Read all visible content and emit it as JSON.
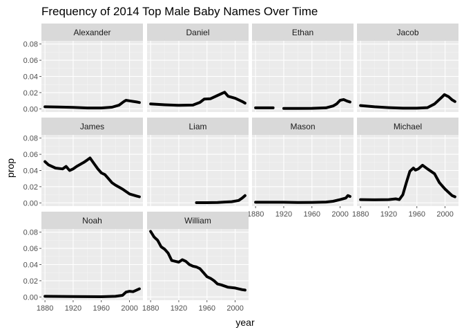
{
  "chart_data": {
    "type": "line",
    "title": "Frequency of 2014 Top Male Baby Names Over Time",
    "xlabel": "year",
    "ylabel": "prop",
    "x_ticks": [
      "1880",
      "1920",
      "1960",
      "2000"
    ],
    "y_ticks": [
      "0.00",
      "0.02",
      "0.04",
      "0.06",
      "0.08"
    ],
    "xlim": [
      1875,
      2019
    ],
    "ylim": [
      -0.004,
      0.084
    ],
    "grid": true,
    "layout": "facet-wrap",
    "colors": {
      "panel_bg": "#ebebeb",
      "strip_bg": "#d9d9d9",
      "grid_major": "#ffffff",
      "grid_minor": "#f5f5f5",
      "series": "#000000"
    },
    "panels": [
      {
        "name": "Alexander",
        "points": [
          [
            1880,
            0.0025
          ],
          [
            1900,
            0.0022
          ],
          [
            1920,
            0.0017
          ],
          [
            1940,
            0.001
          ],
          [
            1960,
            0.001
          ],
          [
            1975,
            0.002
          ],
          [
            1985,
            0.0045
          ],
          [
            1992,
            0.009
          ],
          [
            1995,
            0.0105
          ],
          [
            2000,
            0.0098
          ],
          [
            2005,
            0.0092
          ],
          [
            2010,
            0.0085
          ],
          [
            2014,
            0.0078
          ]
        ]
      },
      {
        "name": "Daniel",
        "points": [
          [
            1880,
            0.006
          ],
          [
            1900,
            0.005
          ],
          [
            1920,
            0.0043
          ],
          [
            1940,
            0.0046
          ],
          [
            1950,
            0.008
          ],
          [
            1956,
            0.012
          ],
          [
            1965,
            0.0125
          ],
          [
            1975,
            0.0165
          ],
          [
            1985,
            0.0205
          ],
          [
            1990,
            0.0155
          ],
          [
            2000,
            0.013
          ],
          [
            2010,
            0.009
          ],
          [
            2014,
            0.007
          ]
        ]
      },
      {
        "name": "Ethan",
        "points": [
          [
            1880,
            0.0012
          ],
          [
            1905,
            0.0012
          ]
        ],
        "points2": [
          [
            1920,
            0.0005
          ],
          [
            1940,
            0.0005
          ],
          [
            1960,
            0.0006
          ],
          [
            1980,
            0.0012
          ],
          [
            1990,
            0.0035
          ],
          [
            1995,
            0.006
          ],
          [
            2000,
            0.0105
          ],
          [
            2005,
            0.0115
          ],
          [
            2010,
            0.0095
          ],
          [
            2014,
            0.0085
          ]
        ]
      },
      {
        "name": "Jacob",
        "points": [
          [
            1880,
            0.004
          ],
          [
            1900,
            0.0025
          ],
          [
            1920,
            0.0015
          ],
          [
            1940,
            0.0008
          ],
          [
            1960,
            0.0008
          ],
          [
            1975,
            0.0015
          ],
          [
            1985,
            0.006
          ],
          [
            1995,
            0.014
          ],
          [
            1999,
            0.0175
          ],
          [
            2005,
            0.015
          ],
          [
            2010,
            0.011
          ],
          [
            2014,
            0.009
          ]
        ]
      },
      {
        "name": "James",
        "points": [
          [
            1880,
            0.051
          ],
          [
            1885,
            0.047
          ],
          [
            1895,
            0.043
          ],
          [
            1905,
            0.042
          ],
          [
            1910,
            0.045
          ],
          [
            1915,
            0.04
          ],
          [
            1920,
            0.042
          ],
          [
            1925,
            0.045
          ],
          [
            1935,
            0.05
          ],
          [
            1940,
            0.053
          ],
          [
            1944,
            0.0555
          ],
          [
            1950,
            0.048
          ],
          [
            1955,
            0.042
          ],
          [
            1960,
            0.037
          ],
          [
            1965,
            0.035
          ],
          [
            1970,
            0.03
          ],
          [
            1975,
            0.025
          ],
          [
            1980,
            0.022
          ],
          [
            1990,
            0.017
          ],
          [
            2000,
            0.011
          ],
          [
            2010,
            0.0085
          ],
          [
            2014,
            0.0075
          ]
        ]
      },
      {
        "name": "Liam",
        "points": [
          [
            1945,
            0.0003
          ],
          [
            1960,
            0.0003
          ],
          [
            1975,
            0.0005
          ],
          [
            1985,
            0.001
          ],
          [
            1995,
            0.0015
          ],
          [
            2005,
            0.003
          ],
          [
            2010,
            0.006
          ],
          [
            2014,
            0.009
          ]
        ]
      },
      {
        "name": "Mason",
        "points": [
          [
            1880,
            0.0008
          ],
          [
            1920,
            0.0008
          ],
          [
            1940,
            0.0005
          ],
          [
            1960,
            0.0006
          ],
          [
            1980,
            0.001
          ],
          [
            1990,
            0.002
          ],
          [
            2000,
            0.004
          ],
          [
            2008,
            0.006
          ],
          [
            2011,
            0.009
          ],
          [
            2014,
            0.008
          ]
        ]
      },
      {
        "name": "Michael",
        "points": [
          [
            1880,
            0.004
          ],
          [
            1900,
            0.0038
          ],
          [
            1920,
            0.004
          ],
          [
            1930,
            0.005
          ],
          [
            1935,
            0.004
          ],
          [
            1940,
            0.01
          ],
          [
            1945,
            0.025
          ],
          [
            1950,
            0.039
          ],
          [
            1955,
            0.043
          ],
          [
            1958,
            0.0405
          ],
          [
            1962,
            0.042
          ],
          [
            1968,
            0.0465
          ],
          [
            1975,
            0.042
          ],
          [
            1985,
            0.036
          ],
          [
            1992,
            0.025
          ],
          [
            2000,
            0.017
          ],
          [
            2005,
            0.013
          ],
          [
            2010,
            0.009
          ],
          [
            2014,
            0.0075
          ]
        ]
      },
      {
        "name": "Noah",
        "points": [
          [
            1880,
            0.0008
          ],
          [
            1920,
            0.0005
          ],
          [
            1960,
            0.0003
          ],
          [
            1980,
            0.0008
          ],
          [
            1990,
            0.002
          ],
          [
            1995,
            0.006
          ],
          [
            2000,
            0.007
          ],
          [
            2005,
            0.0065
          ],
          [
            2010,
            0.0085
          ],
          [
            2014,
            0.01
          ]
        ]
      },
      {
        "name": "William",
        "points": [
          [
            1880,
            0.081
          ],
          [
            1885,
            0.074
          ],
          [
            1890,
            0.07
          ],
          [
            1895,
            0.062
          ],
          [
            1900,
            0.059
          ],
          [
            1905,
            0.054
          ],
          [
            1910,
            0.045
          ],
          [
            1915,
            0.044
          ],
          [
            1920,
            0.043
          ],
          [
            1925,
            0.046
          ],
          [
            1930,
            0.044
          ],
          [
            1935,
            0.04
          ],
          [
            1940,
            0.038
          ],
          [
            1945,
            0.037
          ],
          [
            1950,
            0.035
          ],
          [
            1955,
            0.03
          ],
          [
            1960,
            0.025
          ],
          [
            1965,
            0.023
          ],
          [
            1970,
            0.02
          ],
          [
            1975,
            0.016
          ],
          [
            1980,
            0.015
          ],
          [
            1990,
            0.012
          ],
          [
            2000,
            0.011
          ],
          [
            2010,
            0.009
          ],
          [
            2014,
            0.0085
          ]
        ]
      }
    ]
  }
}
